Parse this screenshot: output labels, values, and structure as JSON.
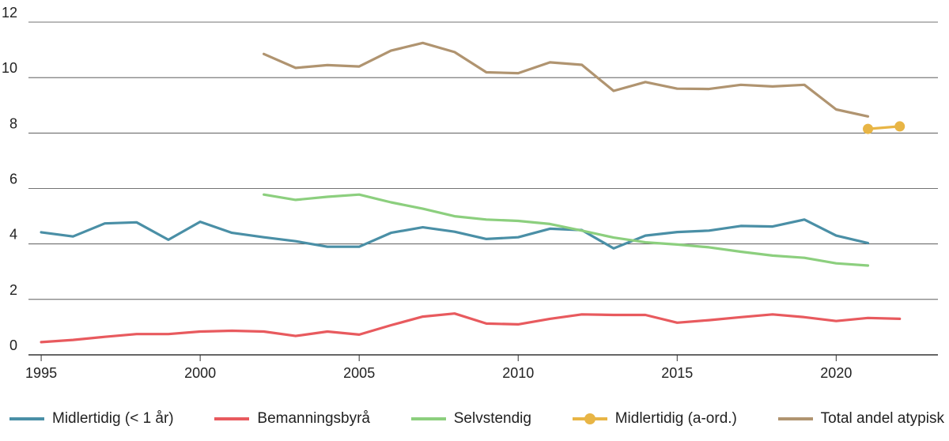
{
  "chart_data": {
    "type": "line",
    "title": "",
    "xlabel": "",
    "ylabel": "",
    "xlim": [
      1994.6,
      2023.2
    ],
    "ylim": [
      0,
      12
    ],
    "x_ticks": [
      1995,
      2000,
      2005,
      2010,
      2015,
      2020
    ],
    "y_ticks": [
      0,
      2,
      4,
      6,
      8,
      10,
      12
    ],
    "grid": "horizontal",
    "legend_position": "bottom",
    "series": [
      {
        "name": "Midlertidig (< 1 år)",
        "color": "#4a8fa6",
        "markers": false,
        "x": [
          1995,
          1996,
          1997,
          1998,
          1999,
          2000,
          2001,
          2002,
          2003,
          2004,
          2005,
          2006,
          2007,
          2008,
          2009,
          2010,
          2011,
          2012,
          2013,
          2014,
          2015,
          2016,
          2017,
          2018,
          2019,
          2020,
          2021
        ],
        "y": [
          4.42,
          4.27,
          4.74,
          4.78,
          4.15,
          4.8,
          4.4,
          4.24,
          4.1,
          3.9,
          3.9,
          4.4,
          4.6,
          4.44,
          4.18,
          4.24,
          4.55,
          4.5,
          3.84,
          4.3,
          4.43,
          4.48,
          4.65,
          4.63,
          4.88,
          4.3,
          4.03
        ]
      },
      {
        "name": "Bemanningsbyrå",
        "color": "#e85a5e",
        "markers": false,
        "x": [
          1995,
          1996,
          1997,
          1998,
          1999,
          2000,
          2001,
          2002,
          2003,
          2004,
          2005,
          2006,
          2007,
          2008,
          2009,
          2010,
          2011,
          2012,
          2013,
          2014,
          2015,
          2016,
          2017,
          2018,
          2019,
          2020,
          2021,
          2022
        ],
        "y": [
          0.46,
          0.54,
          0.65,
          0.75,
          0.75,
          0.84,
          0.87,
          0.84,
          0.68,
          0.84,
          0.73,
          1.07,
          1.38,
          1.49,
          1.13,
          1.1,
          1.3,
          1.46,
          1.44,
          1.44,
          1.16,
          1.25,
          1.36,
          1.46,
          1.36,
          1.22,
          1.33,
          1.3
        ]
      },
      {
        "name": "Selvstendig",
        "color": "#8ccf7e",
        "markers": false,
        "x": [
          2002,
          2003,
          2004,
          2005,
          2006,
          2007,
          2008,
          2009,
          2010,
          2011,
          2012,
          2013,
          2014,
          2015,
          2016,
          2017,
          2018,
          2019,
          2020,
          2021
        ],
        "y": [
          5.78,
          5.59,
          5.7,
          5.78,
          5.5,
          5.27,
          5.0,
          4.88,
          4.83,
          4.72,
          4.48,
          4.23,
          4.06,
          3.98,
          3.88,
          3.72,
          3.58,
          3.5,
          3.3,
          3.22
        ]
      },
      {
        "name": "Midlertidig (a-ord.)",
        "color": "#e8b545",
        "markers": true,
        "x": [
          2021,
          2022
        ],
        "y": [
          8.15,
          8.24
        ]
      },
      {
        "name": "Total andel atypisk",
        "color": "#b09470",
        "markers": false,
        "x": [
          2002,
          2003,
          2004,
          2005,
          2006,
          2007,
          2008,
          2009,
          2010,
          2011,
          2012,
          2013,
          2014,
          2015,
          2016,
          2017,
          2018,
          2019,
          2020,
          2021
        ],
        "y": [
          10.85,
          10.35,
          10.45,
          10.4,
          10.97,
          11.25,
          10.92,
          10.19,
          10.16,
          10.55,
          10.46,
          9.52,
          9.84,
          9.6,
          9.59,
          9.74,
          9.68,
          9.74,
          8.85,
          8.6
        ]
      }
    ]
  }
}
